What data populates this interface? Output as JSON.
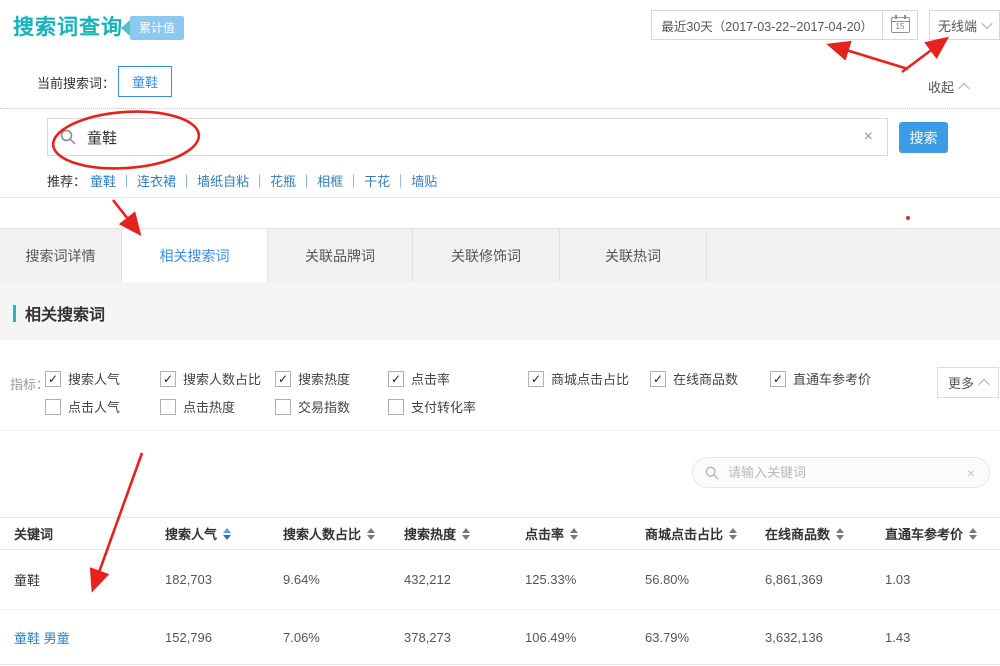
{
  "page": {
    "title": "搜索词查询",
    "badge": "累计值"
  },
  "toolbar": {
    "date_range": "最近30天（2017-03-22~2017-04-20）",
    "calendar_day": "15",
    "terminal": "无线端",
    "collapse_label": "收起"
  },
  "query": {
    "current_label": "当前搜索词：",
    "current_term": "童鞋",
    "search_value": "童鞋",
    "clear_icon": "×",
    "search_button": "搜索",
    "suggest_label": "推荐：",
    "suggest_separator": "｜",
    "suggestions": [
      "童鞋",
      "连衣裙",
      "墙纸自粘",
      "花瓶",
      "相框",
      "干花",
      "墙贴"
    ]
  },
  "tabs": [
    {
      "label": "搜索词详情",
      "active": false
    },
    {
      "label": "相关搜索词",
      "active": true
    },
    {
      "label": "关联品牌词",
      "active": false
    },
    {
      "label": "关联修饰词",
      "active": false
    },
    {
      "label": "关联热词",
      "active": false
    }
  ],
  "section": {
    "title": "相关搜索词"
  },
  "metrics": {
    "label": "指标：",
    "more_button": "更多",
    "row1": [
      {
        "label": "搜索人气",
        "checked": true
      },
      {
        "label": "搜索人数占比",
        "checked": true
      },
      {
        "label": "搜索热度",
        "checked": true
      },
      {
        "label": "点击率",
        "checked": true
      },
      {
        "label": "商城点击占比",
        "checked": true
      },
      {
        "label": "在线商品数",
        "checked": true
      },
      {
        "label": "直通车参考价",
        "checked": true
      }
    ],
    "row2": [
      {
        "label": "点击人气",
        "checked": false
      },
      {
        "label": "点击热度",
        "checked": false
      },
      {
        "label": "交易指数",
        "checked": false
      },
      {
        "label": "支付转化率",
        "checked": false
      }
    ]
  },
  "filter": {
    "placeholder": "请输入关键词",
    "clear_icon": "×"
  },
  "table": {
    "columns": [
      {
        "label": "关键词",
        "sortable": false,
        "sort_active": false
      },
      {
        "label": "搜索人气",
        "sortable": true,
        "sort_active": true
      },
      {
        "label": "搜索人数占比",
        "sortable": true,
        "sort_active": false
      },
      {
        "label": "搜索热度",
        "sortable": true,
        "sort_active": false
      },
      {
        "label": "点击率",
        "sortable": true,
        "sort_active": false
      },
      {
        "label": "商城点击占比",
        "sortable": true,
        "sort_active": false
      },
      {
        "label": "在线商品数",
        "sortable": true,
        "sort_active": false
      },
      {
        "label": "直通车参考价",
        "sortable": true,
        "sort_active": false
      }
    ],
    "rows": [
      {
        "keyword": "童鞋",
        "is_link": false,
        "values": [
          "182,703",
          "9.64%",
          "432,212",
          "125.33%",
          "56.80%",
          "6,861,369",
          "1.03"
        ]
      },
      {
        "keyword": "童鞋 男童",
        "is_link": true,
        "values": [
          "152,796",
          "7.06%",
          "378,273",
          "106.49%",
          "63.79%",
          "3,632,136",
          "1.43"
        ]
      }
    ]
  },
  "colors": {
    "accent_teal": "#14b3bc",
    "badge_blue": "#8dc8f0",
    "accent_blue": "#3a8ee6",
    "link_blue": "#2e7fc0",
    "button_blue": "#3b9be4",
    "annotation_red": "#e5231e"
  }
}
